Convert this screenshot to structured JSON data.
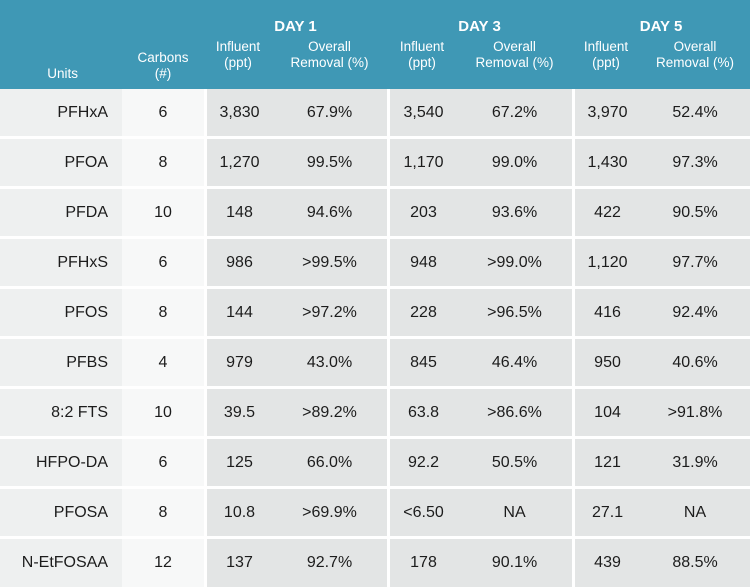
{
  "header": {
    "days": [
      "DAY 1",
      "DAY 3",
      "DAY 5"
    ],
    "units_label": "Units",
    "carbons_label": [
      "Carbons",
      "(#)"
    ],
    "influent_label": [
      "Influent",
      "(ppt)"
    ],
    "removal_label": [
      "Overall",
      "Removal (%)"
    ]
  },
  "colors": {
    "header_bg": "#3f98b5",
    "header_text": "#ffffff",
    "unit_col_bg": "#eef0f0",
    "carbon_col_bg": "#f7f8f8",
    "data_block_bg": "#e3e5e5"
  },
  "rows": [
    {
      "unit": "PFHxA",
      "carbons": "6",
      "d1_inf": "3,830",
      "d1_rem": "67.9%",
      "d3_inf": "3,540",
      "d3_rem": "67.2%",
      "d5_inf": "3,970",
      "d5_rem": "52.4%"
    },
    {
      "unit": "PFOA",
      "carbons": "8",
      "d1_inf": "1,270",
      "d1_rem": "99.5%",
      "d3_inf": "1,170",
      "d3_rem": "99.0%",
      "d5_inf": "1,430",
      "d5_rem": "97.3%"
    },
    {
      "unit": "PFDA",
      "carbons": "10",
      "d1_inf": "148",
      "d1_rem": "94.6%",
      "d3_inf": "203",
      "d3_rem": "93.6%",
      "d5_inf": "422",
      "d5_rem": "90.5%"
    },
    {
      "unit": "PFHxS",
      "carbons": "6",
      "d1_inf": "986",
      "d1_rem": ">99.5%",
      "d3_inf": "948",
      "d3_rem": ">99.0%",
      "d5_inf": "1,120",
      "d5_rem": "97.7%"
    },
    {
      "unit": "PFOS",
      "carbons": "8",
      "d1_inf": "144",
      "d1_rem": ">97.2%",
      "d3_inf": "228",
      "d3_rem": ">96.5%",
      "d5_inf": "416",
      "d5_rem": "92.4%"
    },
    {
      "unit": "PFBS",
      "carbons": "4",
      "d1_inf": "979",
      "d1_rem": "43.0%",
      "d3_inf": "845",
      "d3_rem": "46.4%",
      "d5_inf": "950",
      "d5_rem": "40.6%"
    },
    {
      "unit": "8:2 FTS",
      "carbons": "10",
      "d1_inf": "39.5",
      "d1_rem": ">89.2%",
      "d3_inf": "63.8",
      "d3_rem": ">86.6%",
      "d5_inf": "104",
      "d5_rem": ">91.8%"
    },
    {
      "unit": "HFPO-DA",
      "carbons": "6",
      "d1_inf": "125",
      "d1_rem": "66.0%",
      "d3_inf": "92.2",
      "d3_rem": "50.5%",
      "d5_inf": "121",
      "d5_rem": "31.9%"
    },
    {
      "unit": "PFOSA",
      "carbons": "8",
      "d1_inf": "10.8",
      "d1_rem": ">69.9%",
      "d3_inf": "<6.50",
      "d3_rem": "NA",
      "d5_inf": "27.1",
      "d5_rem": "NA"
    },
    {
      "unit": "N-EtFOSAA",
      "carbons": "12",
      "d1_inf": "137",
      "d1_rem": "92.7%",
      "d3_inf": "178",
      "d3_rem": "90.1%",
      "d5_inf": "439",
      "d5_rem": "88.5%"
    }
  ]
}
